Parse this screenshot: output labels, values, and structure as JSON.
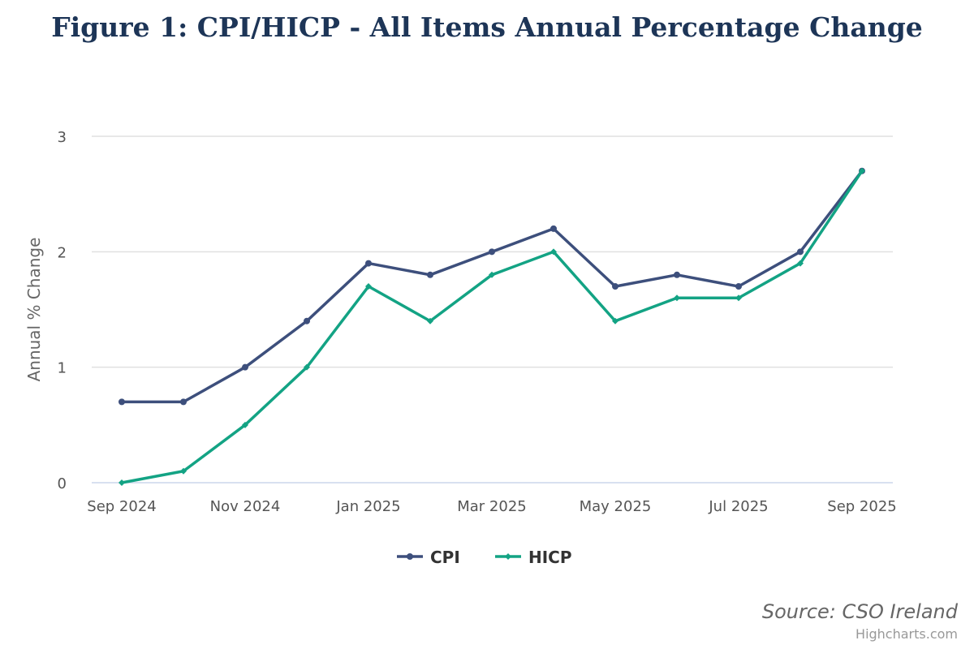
{
  "chart_data": {
    "type": "line",
    "title": "Figure 1: CPI/HICP - All Items Annual Percentage Change",
    "xlabel": "",
    "ylabel": "Annual % Change",
    "ylim": [
      0,
      3
    ],
    "yticks": [
      "0",
      "1",
      "2",
      "3"
    ],
    "x": [
      "Sep 2024",
      "Oct 2024",
      "Nov 2024",
      "Dec 2024",
      "Jan 2025",
      "Feb 2025",
      "Mar 2025",
      "Apr 2025",
      "May 2025",
      "Jun 2025",
      "Jul 2025",
      "Aug 2025",
      "Sep 2025"
    ],
    "xtick_labels": [
      "Sep 2024",
      "Nov 2024",
      "Jan 2025",
      "Mar 2025",
      "May 2025",
      "Jul 2025",
      "Sep 2025"
    ],
    "series": [
      {
        "name": "CPI",
        "color": "#3d4f7c",
        "values": [
          0.7,
          0.7,
          1.0,
          1.4,
          1.9,
          1.8,
          2.0,
          2.2,
          1.7,
          1.8,
          1.7,
          2.0,
          2.7
        ]
      },
      {
        "name": "HICP",
        "color": "#13a384",
        "values": [
          0.0,
          0.1,
          0.5,
          1.0,
          1.7,
          1.4,
          1.8,
          2.0,
          1.4,
          1.6,
          1.6,
          1.9,
          2.7
        ]
      }
    ],
    "grid": true,
    "legend": "bottom-center",
    "source": "Source: CSO Ireland",
    "credits": "Highcharts.com"
  }
}
